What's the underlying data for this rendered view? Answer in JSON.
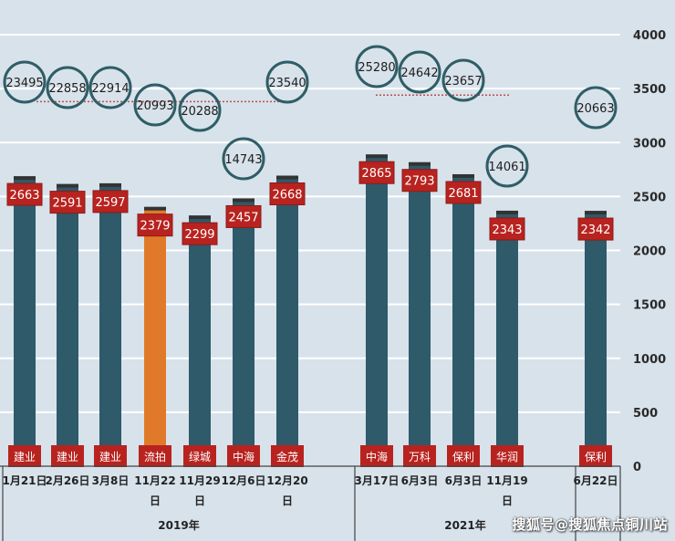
{
  "chart_data": {
    "type": "bar",
    "title": "",
    "xlabel": "",
    "ylabel": "",
    "ylim": [
      0,
      4000
    ],
    "yticks": [
      0,
      500,
      1000,
      1500,
      2000,
      2500,
      3000,
      3500,
      4000
    ],
    "grid": true,
    "bars": [
      {
        "date": "1月21日",
        "developer": "建业",
        "value": 2663,
        "price": 23495,
        "group": "2019年",
        "highlight": false
      },
      {
        "date": "2月26日",
        "developer": "建业",
        "value": 2591,
        "price": 22858,
        "group": "2019年",
        "highlight": false
      },
      {
        "date": "3月8日",
        "developer": "建业",
        "value": 2597,
        "price": 22914,
        "group": "2019年",
        "highlight": false
      },
      {
        "date": "11月22日",
        "developer": "流拍",
        "value": 2379,
        "price": 20993,
        "group": "2019年",
        "highlight": true
      },
      {
        "date": "11月29日",
        "developer": "绿城",
        "value": 2299,
        "price": 20288,
        "group": "2019年",
        "highlight": false
      },
      {
        "date": "12月6日",
        "developer": "中海",
        "value": 2457,
        "price": 14743,
        "group": "2019年",
        "highlight": false
      },
      {
        "date": "12月20日",
        "developer": "金茂",
        "value": 2668,
        "price": 23540,
        "group": "2019年",
        "highlight": false
      },
      {
        "date": "3月17日",
        "developer": "中海",
        "value": 2865,
        "price": 25280,
        "group": "2021年",
        "highlight": false
      },
      {
        "date": "6月3日",
        "developer": "万科",
        "value": 2793,
        "price": 24642,
        "group": "2021年",
        "highlight": false
      },
      {
        "date": "6月3日",
        "developer": "保利",
        "value": 2681,
        "price": 23657,
        "group": "2021年",
        "highlight": false
      },
      {
        "date": "11月19日",
        "developer": "华润",
        "value": 2343,
        "price": 14061,
        "group": "2021年",
        "highlight": false
      },
      {
        "date": "6月22日",
        "developer": "保利",
        "value": 2342,
        "price": 20663,
        "group": "",
        "highlight": false
      }
    ],
    "groups": [
      {
        "label": "2019年"
      },
      {
        "label": "2021年"
      }
    ],
    "average_lines": [
      {
        "group": "2019年",
        "approx_value": 3380
      },
      {
        "group": "2021年",
        "approx_value": 3440
      }
    ],
    "colors": {
      "bar": "#2e5a6a",
      "highlight_bar": "#e07a2a",
      "label_box": "#b8231f",
      "circle_stroke": "#2f5d66",
      "avg_line": "#c0504d",
      "background": "#d7e2eb",
      "grid": "#ffffff"
    }
  },
  "watermark": "搜狐号@搜狐焦点铜川站"
}
